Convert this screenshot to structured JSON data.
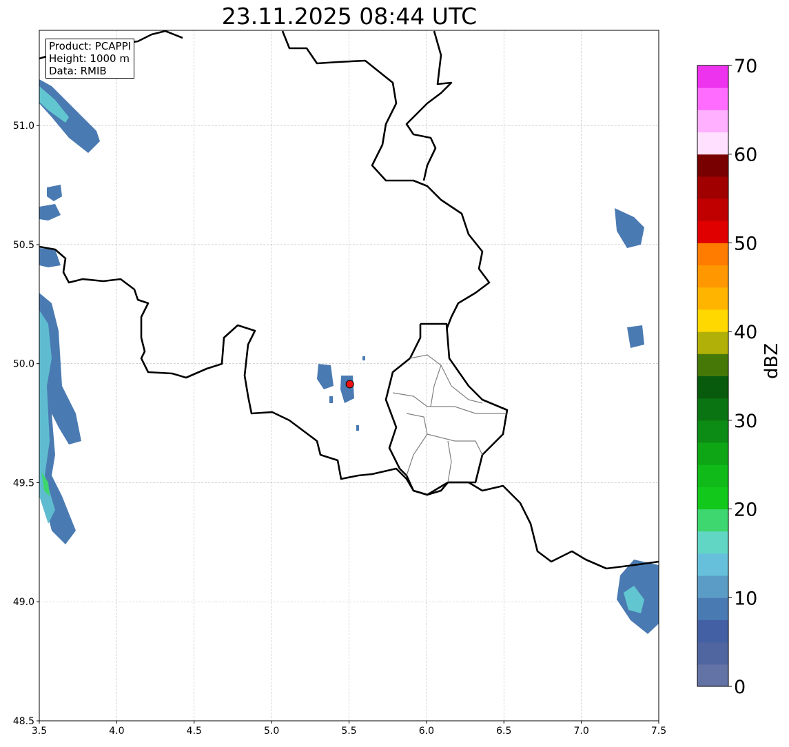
{
  "title": "23.11.2025 08:44 UTC",
  "info": {
    "product": "Product: PCAPPI",
    "height": "Height: 1000 m",
    "data": "Data: RMIB"
  },
  "axes": {
    "xlim": [
      3.5,
      7.5
    ],
    "ylim": [
      48.5,
      51.4
    ],
    "xticks": [
      "3.5",
      "4.0",
      "4.5",
      "5.0",
      "5.5",
      "6.0",
      "6.5",
      "7.0",
      "7.5"
    ],
    "yticks": [
      "48.5",
      "49.0",
      "49.5",
      "50.0",
      "50.5",
      "51.0"
    ]
  },
  "colorbar": {
    "label": "dBZ",
    "ticks": [
      "0",
      "10",
      "20",
      "30",
      "40",
      "50",
      "60",
      "70"
    ],
    "range": [
      0,
      70
    ],
    "step": 2.5,
    "colors": [
      "#6473a6",
      "#5066a0",
      "#4360a4",
      "#4a7ab2",
      "#5a9cc6",
      "#66c0dc",
      "#62d6c4",
      "#3ed66e",
      "#12c81a",
      "#10ba18",
      "#0ea614",
      "#0c8c14",
      "#0a7412",
      "#085a0c",
      "#467808",
      "#b0b008",
      "#ffd800",
      "#ffb400",
      "#ff9800",
      "#ff7c00",
      "#e00000",
      "#c00000",
      "#a00000",
      "#780000",
      "#ffe0ff",
      "#ffb0ff",
      "#ff6cff",
      "#ee33ee"
    ]
  },
  "radar_site": {
    "lon": 5.505,
    "lat": 49.914,
    "color": "#ee1111"
  }
}
